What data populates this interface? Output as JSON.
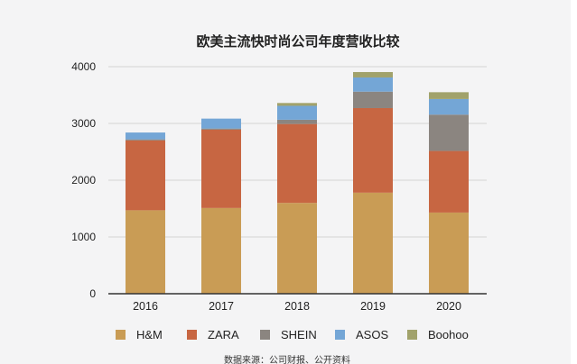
{
  "chart_data": {
    "type": "bar",
    "stacked": true,
    "title": "欧美主流快时尚公司年度营收比较",
    "xlabel": "",
    "ylabel": "",
    "categories": [
      "2016",
      "2017",
      "2018",
      "2019",
      "2020"
    ],
    "ylim": [
      0,
      4000
    ],
    "yticks": [
      0,
      1000,
      2000,
      3000,
      4000
    ],
    "grid": true,
    "legend_position": "bottom",
    "series": [
      {
        "name": "H&M",
        "color": "#c99c55",
        "values": [
          1470,
          1510,
          1600,
          1780,
          1430
        ]
      },
      {
        "name": "ZARA",
        "color": "#c76642",
        "values": [
          1230,
          1380,
          1390,
          1490,
          1085
        ]
      },
      {
        "name": "SHEIN",
        "color": "#8b8580",
        "values": [
          20,
          20,
          75,
          290,
          640
        ]
      },
      {
        "name": "ASOS",
        "color": "#74a6d6",
        "values": [
          120,
          175,
          245,
          250,
          275
        ]
      },
      {
        "name": "Boohoo",
        "color": "#a1a26b",
        "values": [
          0,
          0,
          50,
          95,
          120
        ]
      }
    ],
    "source_note": "数据来源：公司财报、公开资料"
  }
}
